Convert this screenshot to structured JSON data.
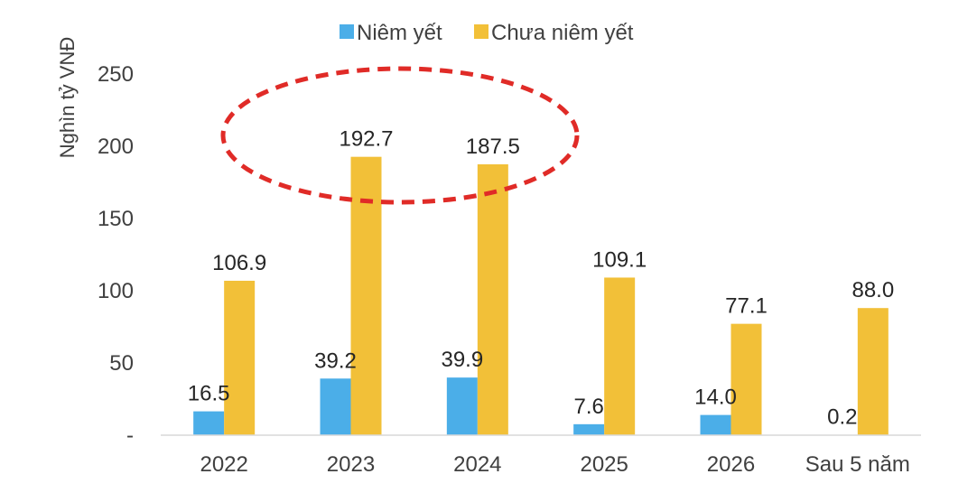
{
  "chart_data": {
    "type": "bar",
    "title": "",
    "xlabel": "",
    "ylabel": "Nghìn tỷ VNĐ",
    "ylim": [
      0,
      250
    ],
    "y_ticks": [
      "-",
      "50",
      "100",
      "150",
      "200",
      "250"
    ],
    "y_tick_values": [
      0,
      50,
      100,
      150,
      200,
      250
    ],
    "categories": [
      "2022",
      "2023",
      "2024",
      "2025",
      "2026",
      "Sau 5 năm"
    ],
    "series": [
      {
        "name": "Niêm yết",
        "color": "#4baee8",
        "values": [
          16.5,
          39.2,
          39.9,
          7.6,
          14.0,
          0.2
        ],
        "labels": [
          "16.5",
          "39.2",
          "39.9",
          "7.6",
          "14.0",
          "0.2"
        ]
      },
      {
        "name": "Chưa niêm yết",
        "color": "#f2c038",
        "values": [
          106.9,
          192.7,
          187.5,
          109.1,
          77.1,
          88.0
        ],
        "labels": [
          "106.9",
          "192.7",
          "187.5",
          "109.1",
          "77.1",
          "88.0"
        ]
      }
    ],
    "legend_position": "top-center",
    "grid": false,
    "annotation": {
      "shape": "dashed-ellipse",
      "color": "#e02b27",
      "highlights": [
        "2023",
        "2024"
      ]
    }
  }
}
